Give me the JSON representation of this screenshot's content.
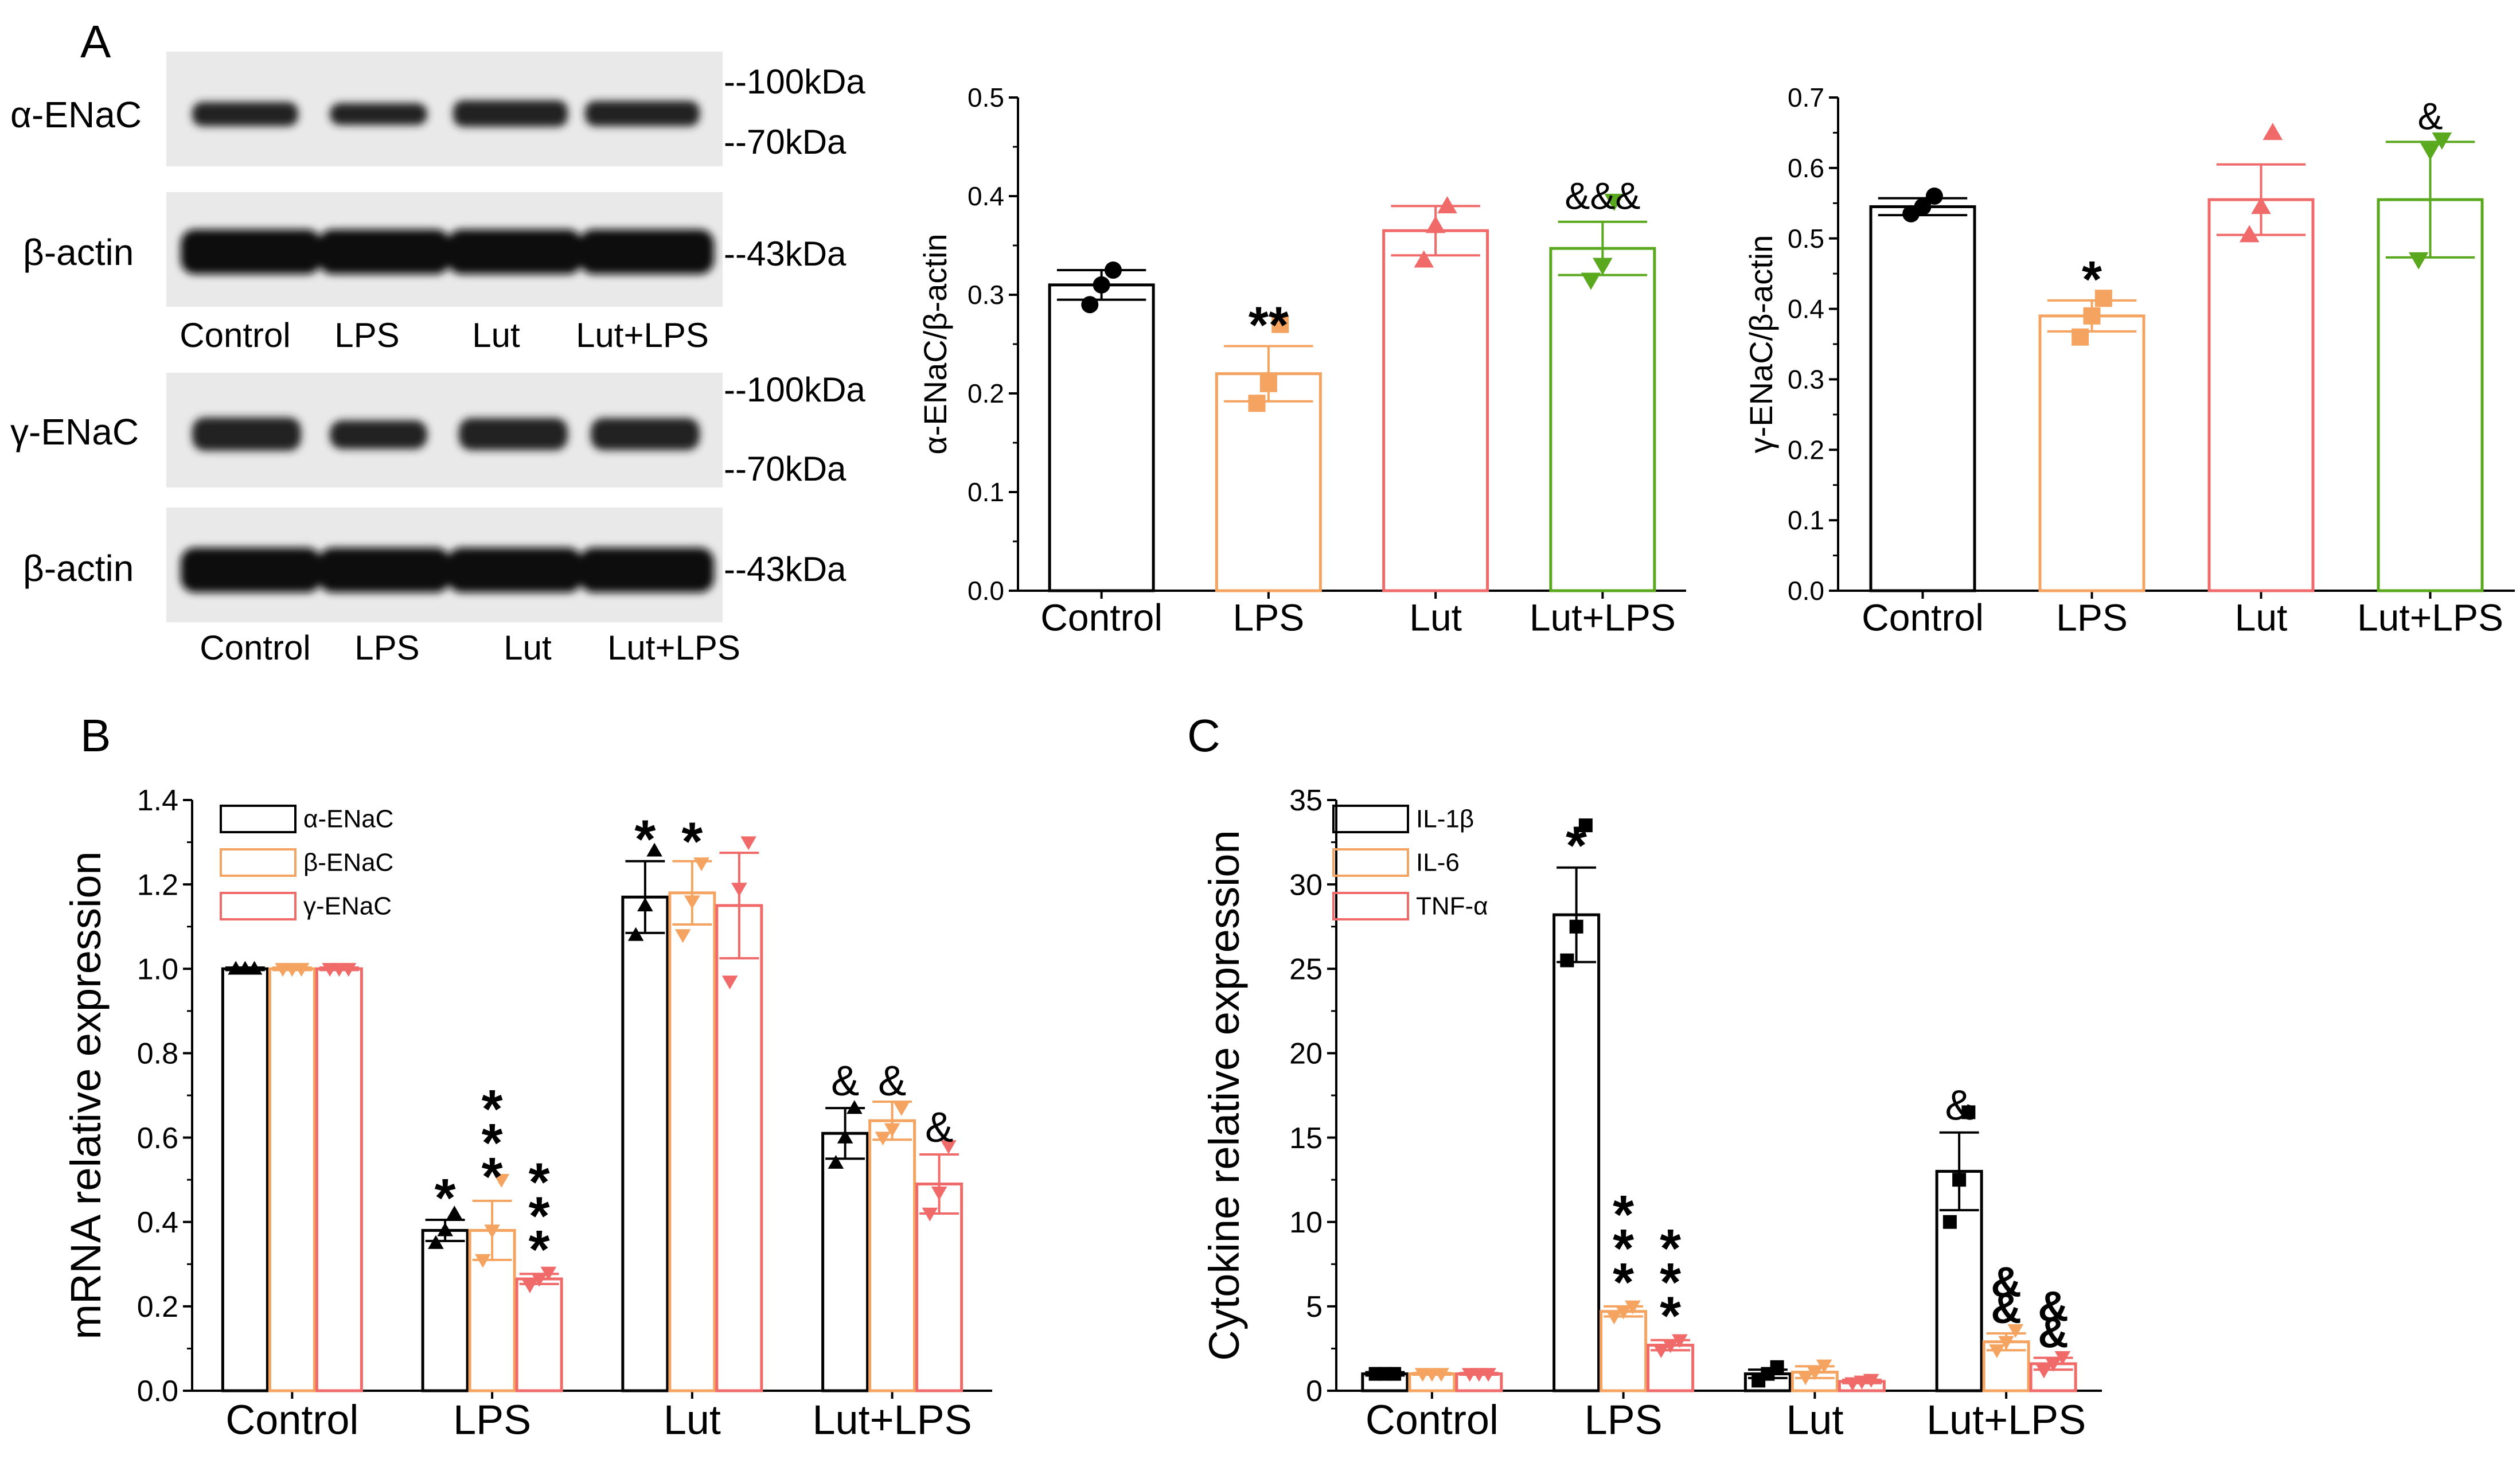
{
  "panel_labels": {
    "a": "A",
    "b": "B",
    "c": "C"
  },
  "colors": {
    "control": "#000000",
    "lps": "#f4a460",
    "lut": "#f06a6a",
    "lutlps": "#5aa81e"
  },
  "blot": {
    "rows": [
      {
        "label": "α-ENaC",
        "markers": [
          "--100kDa",
          "--70kDa"
        ]
      },
      {
        "label": "β-actin",
        "markers": [
          "--43kDa"
        ]
      },
      {
        "label": "γ-ENaC",
        "markers": [
          "--100kDa",
          "--70kDa"
        ]
      },
      {
        "label": "β-actin",
        "markers": [
          "--43kDa"
        ]
      }
    ],
    "lane_labels_1": [
      "Control",
      "LPS",
      "Lut",
      "Lut+LPS"
    ],
    "lane_labels_2": [
      "Control",
      "LPS",
      "Lut",
      "Lut+LPS"
    ]
  },
  "chart_data": [
    {
      "id": "alpha_bar",
      "type": "bar",
      "ylabel": "α-ENaC/β-actin",
      "categories": [
        "Control",
        "LPS",
        "Lut",
        "Lut+LPS"
      ],
      "values": [
        0.31,
        0.22,
        0.365,
        0.347
      ],
      "errors": [
        0.015,
        0.028,
        0.025,
        0.027
      ],
      "points": [
        [
          0.29,
          0.31,
          0.325
        ],
        [
          0.19,
          0.21,
          0.27
        ],
        [
          0.335,
          0.37,
          0.39
        ],
        [
          0.315,
          0.33,
          0.395
        ]
      ],
      "markers": [
        "circle",
        "square",
        "triangle",
        "triangle-down"
      ],
      "colors": [
        "#000000",
        "#f4a460",
        "#f06a6a",
        "#5aa81e"
      ],
      "annotations": [
        "",
        "**",
        "",
        "&&&"
      ],
      "ylim": [
        0,
        0.5
      ],
      "yticks": [
        0.0,
        0.1,
        0.2,
        0.3,
        0.4,
        0.5
      ]
    },
    {
      "id": "gamma_bar",
      "type": "bar",
      "ylabel": "γ-ENaC/β-actin",
      "categories": [
        "Control",
        "LPS",
        "Lut",
        "Lut+LPS"
      ],
      "values": [
        0.545,
        0.39,
        0.555,
        0.555
      ],
      "errors": [
        0.012,
        0.022,
        0.05,
        0.082
      ],
      "points": [
        [
          0.535,
          0.545,
          0.56
        ],
        [
          0.36,
          0.39,
          0.415
        ],
        [
          0.505,
          0.545,
          0.65
        ],
        [
          0.47,
          0.625,
          0.64
        ]
      ],
      "markers": [
        "circle",
        "square",
        "triangle",
        "triangle-down"
      ],
      "colors": [
        "#000000",
        "#f4a460",
        "#f06a6a",
        "#5aa81e"
      ],
      "annotations": [
        "",
        "*",
        "",
        "&"
      ],
      "ylim": [
        0,
        0.7
      ],
      "yticks": [
        0.0,
        0.1,
        0.2,
        0.3,
        0.4,
        0.5,
        0.6,
        0.7
      ]
    },
    {
      "id": "mrna_bar",
      "type": "bar",
      "ylabel": "mRNA relative expression",
      "categories": [
        "Control",
        "LPS",
        "Lut",
        "Lut+LPS"
      ],
      "series": [
        {
          "name": "α-ENaC",
          "values": [
            1.0,
            0.38,
            1.17,
            0.61
          ],
          "errors": [
            0.003,
            0.025,
            0.085,
            0.06
          ],
          "points": [
            [
              1.0,
              1.0,
              1.0
            ],
            [
              0.35,
              0.38,
              0.42
            ],
            [
              1.08,
              1.15,
              1.28
            ],
            [
              0.54,
              0.6,
              0.67
            ]
          ],
          "marker": "triangle",
          "color": "#000000",
          "annotations": [
            "",
            "*",
            "*",
            "&"
          ]
        },
        {
          "name": "β-ENaC",
          "values": [
            1.0,
            0.38,
            1.18,
            0.64
          ],
          "errors": [
            0.003,
            0.07,
            0.075,
            0.045
          ],
          "points": [
            [
              1.0,
              1.0,
              1.0
            ],
            [
              0.31,
              0.38,
              0.5
            ],
            [
              1.08,
              1.16,
              1.25
            ],
            [
              0.6,
              0.62,
              0.67
            ]
          ],
          "marker": "triangle-down",
          "color": "#f4a460",
          "annotations": [
            "",
            "***",
            "*",
            "&"
          ]
        },
        {
          "name": "γ-ENaC",
          "values": [
            1.0,
            0.265,
            1.15,
            0.49
          ],
          "errors": [
            0.003,
            0.012,
            0.125,
            0.07
          ],
          "points": [
            [
              1.0,
              1.0,
              1.0
            ],
            [
              0.25,
              0.265,
              0.28
            ],
            [
              0.97,
              1.19,
              1.3
            ],
            [
              0.42,
              0.47,
              0.58
            ]
          ],
          "marker": "triangle-down",
          "color": "#f06a6a",
          "annotations": [
            "",
            "***",
            "",
            "&"
          ]
        }
      ],
      "ylim": [
        0,
        1.4
      ],
      "yticks": [
        0.0,
        0.2,
        0.4,
        0.6,
        0.8,
        1.0,
        1.2,
        1.4
      ]
    },
    {
      "id": "cytokine_bar",
      "type": "bar",
      "ylabel": "Cytokine relative expression",
      "categories": [
        "Control",
        "LPS",
        "Lut",
        "Lut+LPS"
      ],
      "series": [
        {
          "name": "IL-1β",
          "values": [
            1.0,
            28.2,
            1.0,
            13.0
          ],
          "errors": [
            0.1,
            2.8,
            0.25,
            2.3
          ],
          "points": [
            [
              1.0,
              1.0,
              1.0
            ],
            [
              25.5,
              27.5,
              33.5
            ],
            [
              0.6,
              1.0,
              1.4
            ],
            [
              10.0,
              12.5,
              16.5
            ]
          ],
          "marker": "square",
          "color": "#000000",
          "annotations": [
            "",
            "*",
            "",
            "&"
          ]
        },
        {
          "name": "IL-6",
          "values": [
            1.0,
            4.7,
            1.1,
            2.9
          ],
          "errors": [
            0.05,
            0.3,
            0.35,
            0.5
          ],
          "points": [
            [
              1.0,
              1.0,
              1.0
            ],
            [
              4.4,
              4.7,
              5.0
            ],
            [
              0.8,
              1.1,
              1.5
            ],
            [
              2.4,
              2.9,
              3.6
            ]
          ],
          "marker": "triangle-down",
          "color": "#f4a460",
          "annotations": [
            "",
            "***",
            "",
            "&&"
          ]
        },
        {
          "name": "TNF-α",
          "values": [
            1.0,
            2.7,
            0.55,
            1.6
          ],
          "errors": [
            0.05,
            0.3,
            0.1,
            0.35
          ],
          "points": [
            [
              1.0,
              1.0,
              1.0
            ],
            [
              2.4,
              2.7,
              3.0
            ],
            [
              0.45,
              0.55,
              0.65
            ],
            [
              1.2,
              1.6,
              2.0
            ]
          ],
          "marker": "triangle-down",
          "color": "#f06a6a",
          "annotations": [
            "",
            "***",
            "",
            "&&"
          ]
        }
      ],
      "ylim": [
        0,
        35
      ],
      "yticks": [
        0,
        5,
        10,
        15,
        20,
        25,
        30,
        35
      ]
    }
  ]
}
